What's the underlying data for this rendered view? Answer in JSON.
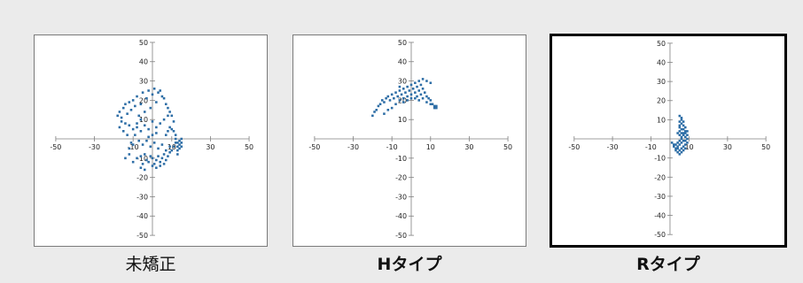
{
  "colors": {
    "marker": "#2e6ea6",
    "axis": "#7f7f7f",
    "background": "#ebebeb"
  },
  "chart_data": [
    {
      "type": "scatter",
      "caption": "未矯正",
      "xlim": [
        -50,
        50
      ],
      "ylim": [
        -50,
        50
      ],
      "xticks": [
        -50,
        -30,
        -10,
        10,
        30,
        50
      ],
      "yticks": [
        -50,
        -40,
        -30,
        -20,
        -10,
        10,
        20,
        30,
        40,
        50
      ],
      "grid": false,
      "series": [
        {
          "points": [
            [
              -18,
              12
            ],
            [
              -17,
              14
            ],
            [
              -16,
              11
            ],
            [
              -15,
              16
            ],
            [
              -14,
              18
            ],
            [
              -13,
              13
            ],
            [
              -12,
              19
            ],
            [
              -11,
              15
            ],
            [
              -10,
              20
            ],
            [
              -9,
              17
            ],
            [
              -8,
              22
            ],
            [
              -7,
              12
            ],
            [
              -6,
              18
            ],
            [
              -5,
              24
            ],
            [
              -4,
              14
            ],
            [
              -3,
              21
            ],
            [
              -2,
              25
            ],
            [
              -1,
              16
            ],
            [
              0,
              23
            ],
            [
              1,
              26
            ],
            [
              2,
              19
            ],
            [
              3,
              24
            ],
            [
              4,
              25
            ],
            [
              5,
              22
            ],
            [
              6,
              21
            ],
            [
              7,
              18
            ],
            [
              8,
              16
            ],
            [
              9,
              14
            ],
            [
              10,
              12
            ],
            [
              11,
              9
            ],
            [
              -16,
              9
            ],
            [
              -14,
              8
            ],
            [
              -12,
              7
            ],
            [
              -10,
              5
            ],
            [
              -8,
              6
            ],
            [
              -6,
              4
            ],
            [
              -4,
              7
            ],
            [
              -2,
              5
            ],
            [
              0,
              9
            ],
            [
              2,
              3
            ],
            [
              -14,
              -10
            ],
            [
              -12,
              -8
            ],
            [
              -10,
              -12
            ],
            [
              -8,
              -10
            ],
            [
              -6,
              -9
            ],
            [
              -5,
              -13
            ],
            [
              -4,
              -8
            ],
            [
              -3,
              -11
            ],
            [
              -2,
              -12
            ],
            [
              -1,
              -9
            ],
            [
              0,
              -10
            ],
            [
              1,
              -13
            ],
            [
              2,
              -11
            ],
            [
              3,
              -9
            ],
            [
              4,
              -12
            ],
            [
              5,
              -10
            ],
            [
              6,
              -8
            ],
            [
              7,
              -11
            ],
            [
              8,
              -9
            ],
            [
              9,
              -7
            ],
            [
              10,
              -6
            ],
            [
              11,
              -4
            ],
            [
              12,
              -2
            ],
            [
              12,
              0
            ],
            [
              12,
              2
            ],
            [
              11,
              4
            ],
            [
              10,
              5
            ],
            [
              9,
              6
            ],
            [
              8,
              4
            ],
            [
              7,
              2
            ],
            [
              13,
              -8
            ],
            [
              13,
              -6
            ],
            [
              13,
              -4
            ],
            [
              13,
              -2
            ],
            [
              14,
              -5
            ],
            [
              14,
              -3
            ],
            [
              14,
              -1
            ],
            [
              15,
              -4
            ],
            [
              15,
              -2
            ],
            [
              15,
              0
            ],
            [
              -9,
              2
            ],
            [
              -7,
              -1
            ],
            [
              -5,
              -3
            ],
            [
              -3,
              -1
            ],
            [
              -1,
              -4
            ],
            [
              1,
              -2
            ],
            [
              3,
              -5
            ],
            [
              5,
              -3
            ],
            [
              7,
              -6
            ],
            [
              9,
              -4
            ],
            [
              -11,
              -2
            ],
            [
              -13,
              2
            ],
            [
              -15,
              4
            ],
            [
              -17,
              6
            ],
            [
              -12,
              -5
            ],
            [
              -10,
              -3
            ],
            [
              0,
              -14
            ],
            [
              2,
              -15
            ],
            [
              4,
              -14
            ],
            [
              6,
              -13
            ],
            [
              -4,
              -16
            ],
            [
              -6,
              -15
            ],
            [
              8,
              12
            ],
            [
              6,
              10
            ],
            [
              4,
              8
            ],
            [
              2,
              6
            ],
            [
              0,
              2
            ],
            [
              -2,
              1
            ],
            [
              -6,
              10
            ],
            [
              -8,
              8
            ]
          ]
        }
      ]
    },
    {
      "type": "scatter",
      "caption": "Hタイプ",
      "xlim": [
        -50,
        50
      ],
      "ylim": [
        -50,
        50
      ],
      "xticks": [
        -50,
        -30,
        -10,
        10,
        30,
        50
      ],
      "yticks": [
        -50,
        -40,
        -30,
        -20,
        -10,
        10,
        20,
        30,
        40,
        50
      ],
      "grid": false,
      "series": [
        {
          "points": [
            [
              -20,
              12
            ],
            [
              -19,
              14
            ],
            [
              -18,
              15
            ],
            [
              -17,
              17
            ],
            [
              -16,
              18
            ],
            [
              -15,
              20
            ],
            [
              -14,
              19
            ],
            [
              -13,
              21
            ],
            [
              -12,
              22
            ],
            [
              -11,
              20
            ],
            [
              -10,
              23
            ],
            [
              -9,
              21
            ],
            [
              -8,
              24
            ],
            [
              -7,
              22
            ],
            [
              -6,
              25
            ],
            [
              -5,
              23
            ],
            [
              -4,
              21
            ],
            [
              -3,
              24
            ],
            [
              -2,
              22
            ],
            [
              -1,
              25
            ],
            [
              0,
              23
            ],
            [
              1,
              26
            ],
            [
              2,
              24
            ],
            [
              3,
              22
            ],
            [
              4,
              25
            ],
            [
              5,
              23
            ],
            [
              6,
              26
            ],
            [
              7,
              24
            ],
            [
              8,
              22
            ],
            [
              9,
              21
            ],
            [
              10,
              20
            ],
            [
              11,
              18
            ],
            [
              12,
              17
            ],
            [
              12,
              16
            ],
            [
              13,
              17
            ],
            [
              13,
              16
            ],
            [
              -6,
              20
            ],
            [
              -4,
              19
            ],
            [
              -2,
              20
            ],
            [
              0,
              21
            ],
            [
              2,
              21
            ],
            [
              4,
              20
            ],
            [
              6,
              21
            ],
            [
              8,
              19
            ],
            [
              10,
              18
            ],
            [
              -8,
              18
            ],
            [
              -10,
              16
            ],
            [
              -12,
              15
            ],
            [
              -14,
              13
            ],
            [
              -2,
              27
            ],
            [
              0,
              28
            ],
            [
              2,
              29
            ],
            [
              4,
              30
            ],
            [
              6,
              31
            ],
            [
              8,
              30
            ],
            [
              10,
              29
            ],
            [
              -4,
              26
            ],
            [
              -6,
              27
            ],
            [
              3,
              27
            ],
            [
              5,
              28
            ]
          ]
        }
      ]
    },
    {
      "type": "scatter",
      "caption": "Rタイプ",
      "xlim": [
        -50,
        50
      ],
      "ylim": [
        -50,
        50
      ],
      "xticks": [
        -50,
        -30,
        -10,
        10,
        30,
        50
      ],
      "yticks": [
        -50,
        -40,
        -30,
        -20,
        -10,
        10,
        20,
        30,
        40,
        50
      ],
      "grid": false,
      "series": [
        {
          "points": [
            [
              5,
              12
            ],
            [
              6,
              11
            ],
            [
              6,
              10
            ],
            [
              7,
              9
            ],
            [
              6,
              8
            ],
            [
              7,
              7
            ],
            [
              8,
              6
            ],
            [
              7,
              5
            ],
            [
              8,
              4
            ],
            [
              6,
              3
            ],
            [
              7,
              2
            ],
            [
              8,
              1
            ],
            [
              6,
              0
            ],
            [
              7,
              -1
            ],
            [
              5,
              -1
            ],
            [
              4,
              -2
            ],
            [
              3,
              -3
            ],
            [
              2,
              -3
            ],
            [
              1,
              -2
            ],
            [
              2,
              -4
            ],
            [
              3,
              -5
            ],
            [
              4,
              -4
            ],
            [
              5,
              -3
            ],
            [
              6,
              -2
            ],
            [
              8,
              -1
            ],
            [
              9,
              0
            ],
            [
              9,
              2
            ],
            [
              9,
              4
            ],
            [
              8,
              -3
            ],
            [
              7,
              -4
            ],
            [
              5,
              -6
            ],
            [
              6,
              -7
            ],
            [
              5,
              -8
            ],
            [
              4,
              -7
            ],
            [
              3,
              -6
            ],
            [
              6,
              5
            ],
            [
              5,
              6
            ],
            [
              5,
              9
            ],
            [
              5,
              4
            ],
            [
              4,
              3
            ],
            [
              8,
              -5
            ],
            [
              7,
              -6
            ],
            [
              6,
              -5
            ],
            [
              4,
              -5
            ],
            [
              5,
              2
            ],
            [
              7,
              3
            ],
            [
              6,
              1
            ],
            [
              8,
              3
            ],
            [
              9,
              -2
            ],
            [
              5,
              7
            ]
          ]
        }
      ]
    }
  ]
}
